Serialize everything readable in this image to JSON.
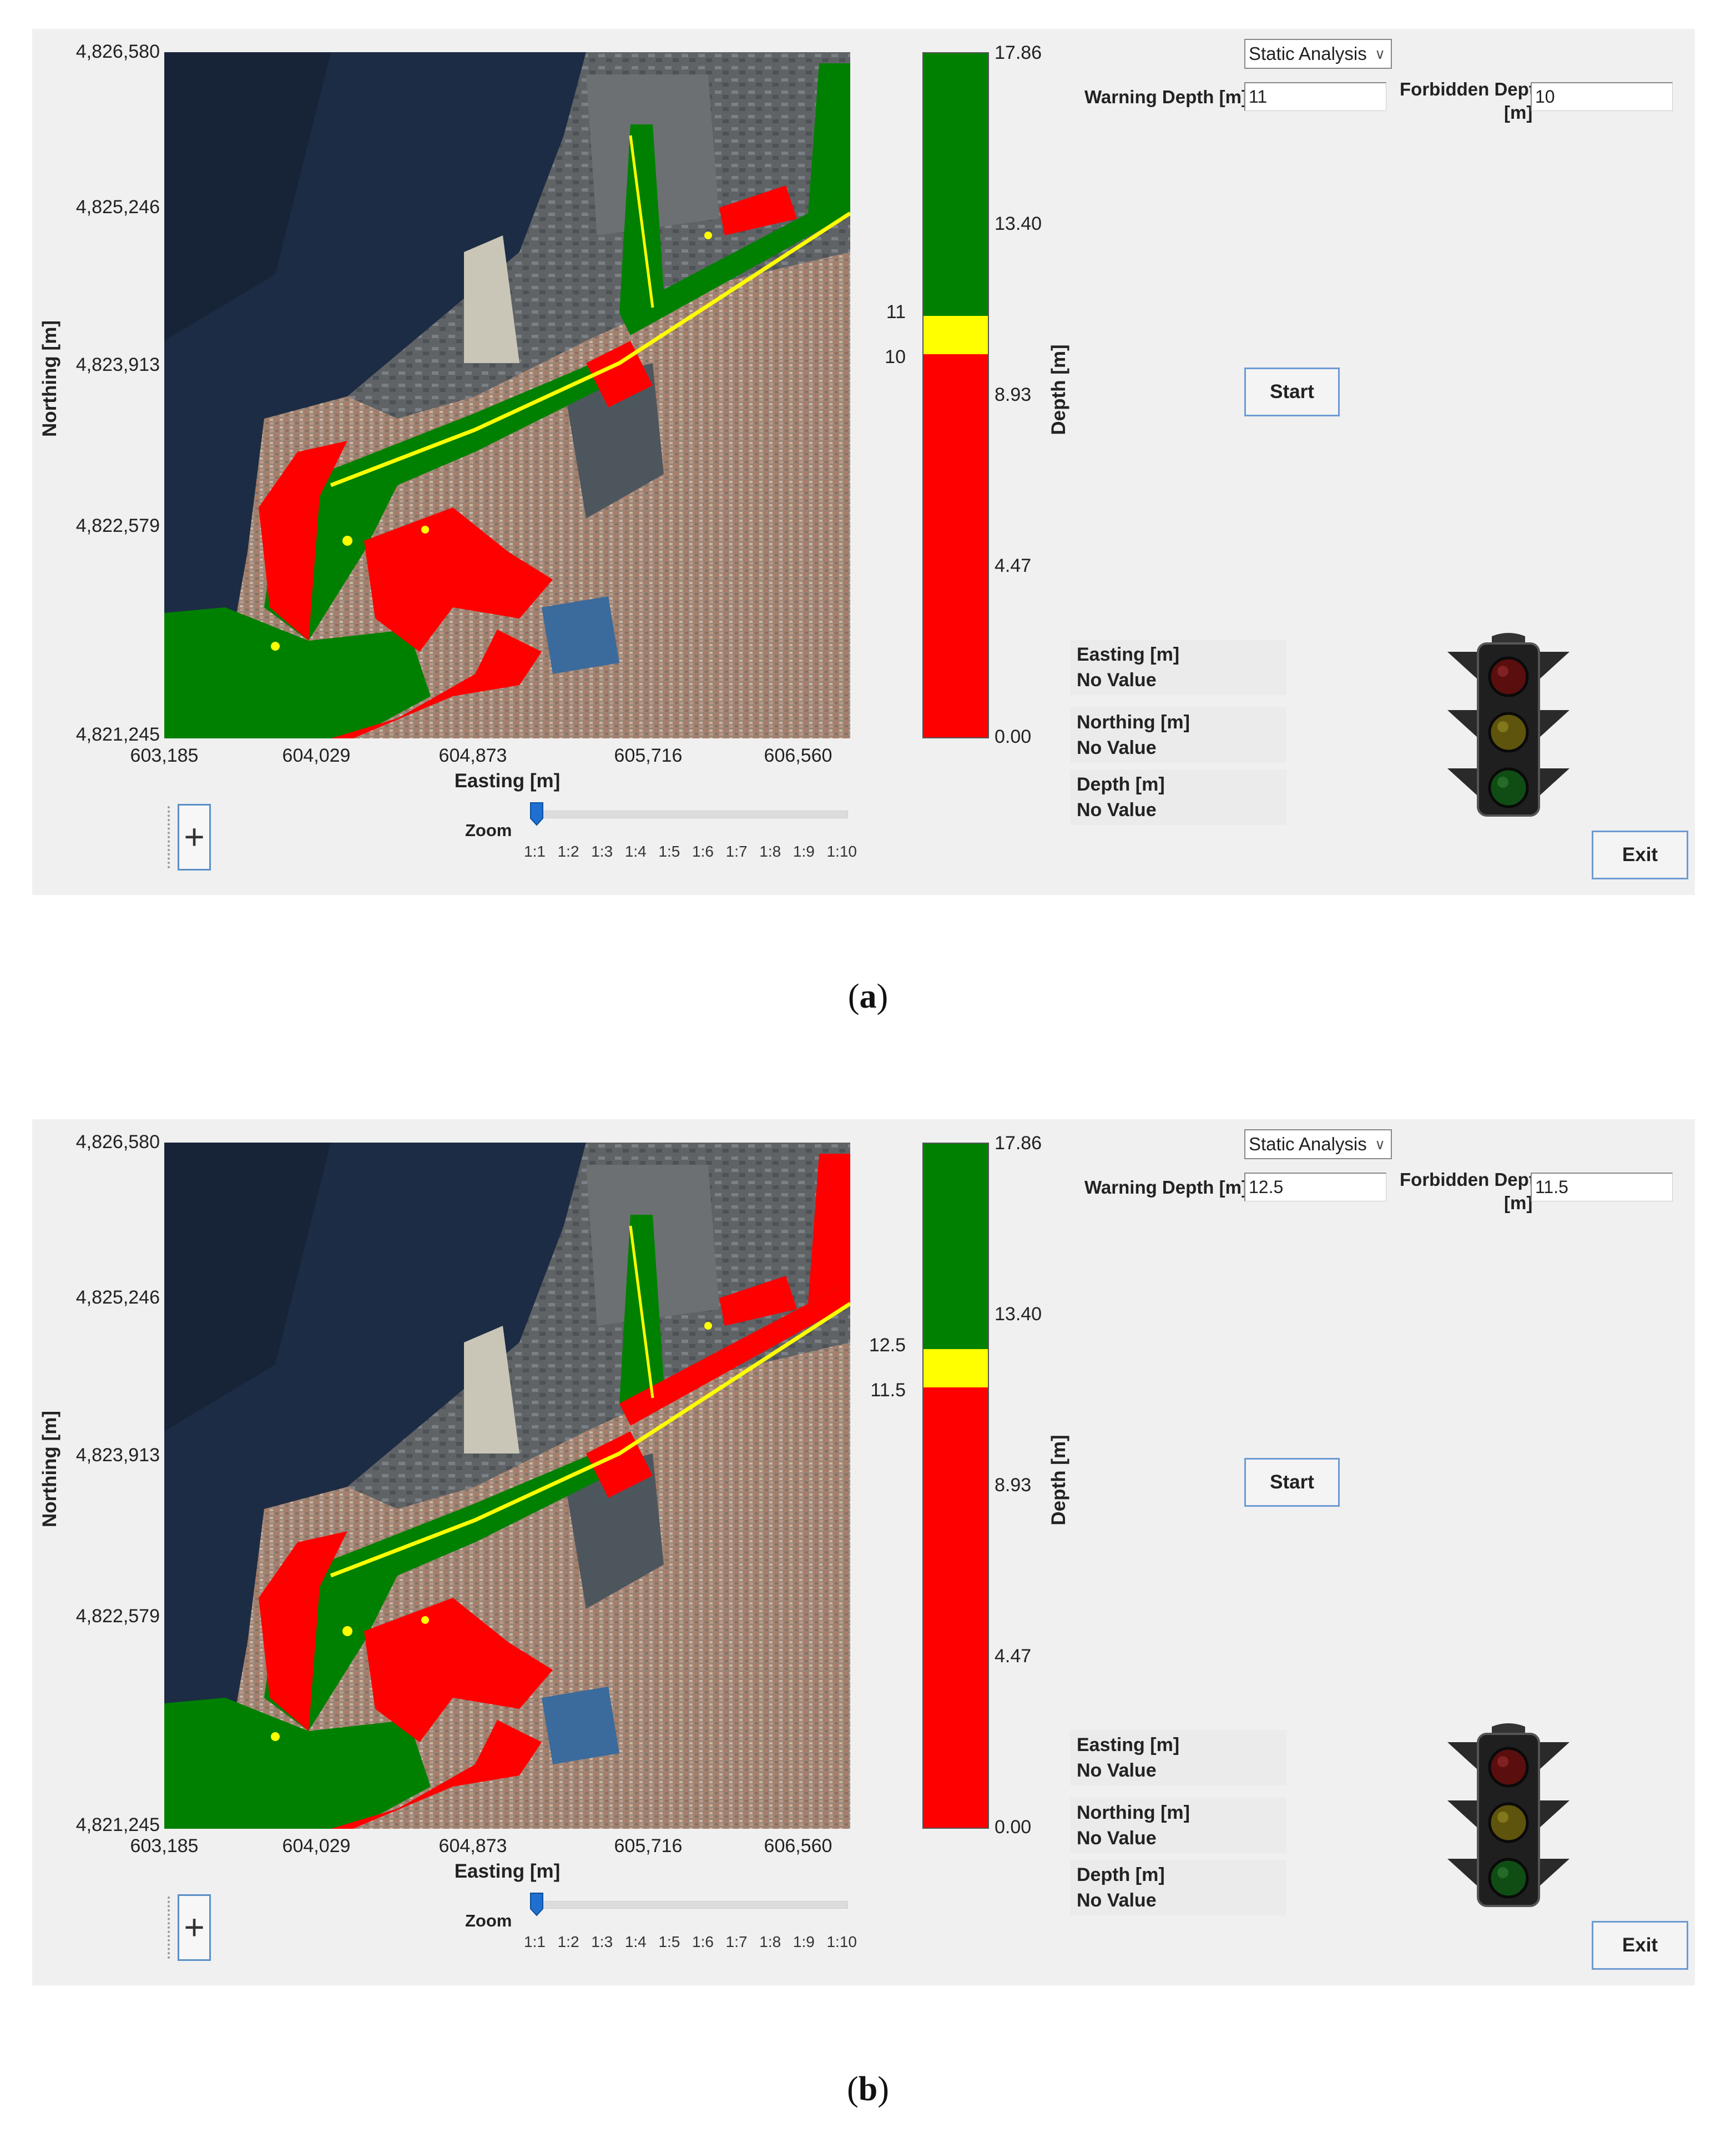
{
  "figures": [
    {
      "caption": "a",
      "map": {
        "y_ticks": [
          "4,826,580",
          "4,825,246",
          "4,823,913",
          "4,822,579",
          "4,821,245"
        ],
        "x_ticks": [
          "603,185",
          "604,029",
          "604,873",
          "605,716",
          "606,560"
        ],
        "y_label": "Northing [m]",
        "x_label": "Easting [m]"
      },
      "colorbar": {
        "ticks": [
          "17.86",
          "13.40",
          "8.93",
          "4.47",
          "0.00"
        ],
        "label": "Depth [m]",
        "max": 17.86,
        "warning_depth": 11,
        "forbidden_depth": 10,
        "warning_label": "11",
        "forbidden_label": "10",
        "colors": {
          "safe": "#008000",
          "warning": "#ffff00",
          "forbidden": "#ff0000"
        }
      },
      "controls": {
        "analysis_mode": "Static Analysis",
        "warning_label": "Warning Depth [m]",
        "warning_value": "11",
        "forbidden_label_line1": "Forbidden Depth",
        "forbidden_label_line2": "[m]",
        "forbidden_value": "10",
        "start_label": "Start",
        "exit_label": "Exit"
      },
      "readout": {
        "easting_label": "Easting [m]",
        "easting_value": "No Value",
        "northing_label": "Northing [m]",
        "northing_value": "No Value",
        "depth_label": "Depth [m]",
        "depth_value": "No Value"
      },
      "zoom": {
        "label": "Zoom",
        "ticks": [
          "1:1",
          "1:2",
          "1:3",
          "1:4",
          "1:5",
          "1:6",
          "1:7",
          "1:8",
          "1:9",
          "1:10"
        ],
        "selected": "1:1"
      },
      "toolbox": {
        "icon": "plus-icon"
      },
      "traffic_light": {
        "icon": "traffic-light-icon"
      }
    },
    {
      "caption": "b",
      "map": {
        "y_ticks": [
          "4,826,580",
          "4,825,246",
          "4,823,913",
          "4,822,579",
          "4,821,245"
        ],
        "x_ticks": [
          "603,185",
          "604,029",
          "604,873",
          "605,716",
          "606,560"
        ],
        "y_label": "Northing [m]",
        "x_label": "Easting [m]"
      },
      "colorbar": {
        "ticks": [
          "17.86",
          "13.40",
          "8.93",
          "4.47",
          "0.00"
        ],
        "label": "Depth [m]",
        "max": 17.86,
        "warning_depth": 12.5,
        "forbidden_depth": 11.5,
        "warning_label": "12.5",
        "forbidden_label": "11.5",
        "colors": {
          "safe": "#008000",
          "warning": "#ffff00",
          "forbidden": "#ff0000"
        }
      },
      "controls": {
        "analysis_mode": "Static Analysis",
        "warning_label": "Warning Depth [m]",
        "warning_value": "12.5",
        "forbidden_label_line1": "Forbidden Depth",
        "forbidden_label_line2": "[m]",
        "forbidden_value": "11.5",
        "start_label": "Start",
        "exit_label": "Exit"
      },
      "readout": {
        "easting_label": "Easting [m]",
        "easting_value": "No Value",
        "northing_label": "Northing [m]",
        "northing_value": "No Value",
        "depth_label": "Depth [m]",
        "depth_value": "No Value"
      },
      "zoom": {
        "label": "Zoom",
        "ticks": [
          "1:1",
          "1:2",
          "1:3",
          "1:4",
          "1:5",
          "1:6",
          "1:7",
          "1:8",
          "1:9",
          "1:10"
        ],
        "selected": "1:1"
      },
      "toolbox": {
        "icon": "plus-icon"
      },
      "traffic_light": {
        "icon": "traffic-light-icon"
      }
    }
  ]
}
